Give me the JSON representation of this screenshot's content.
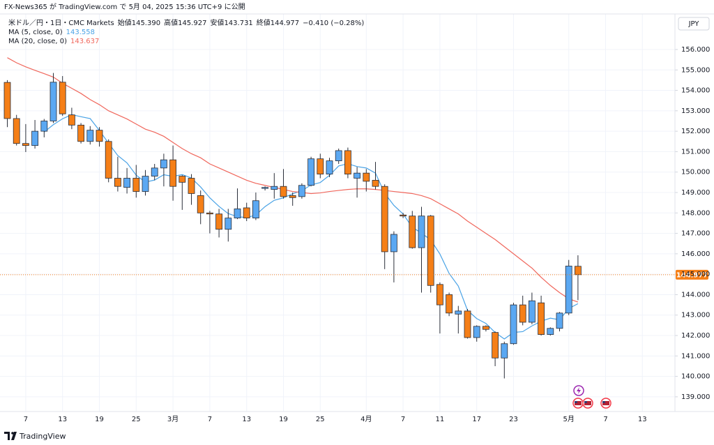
{
  "header": {
    "published": "FX-News365 が TradingView.com で 5月 04, 2025 15:36 UTC+9 に公開"
  },
  "brand": "TradingView",
  "chart_data": {
    "type": "candlestick",
    "symbol": "米ドル／円・1日・CMC Markets",
    "ohlc_legend": [
      {
        "label": "始値",
        "value": "145.390"
      },
      {
        "label": "高値",
        "value": "145.927"
      },
      {
        "label": "安値",
        "value": "143.731"
      },
      {
        "label": "終値",
        "value": "144.977"
      }
    ],
    "change": "−0.410 (−0.28%)",
    "currency": "JPY",
    "last_label": "144.977",
    "up_color": "#5ba8f2",
    "down_color": "#f57f17",
    "categories": [
      null,
      null,
      "7",
      null,
      null,
      null,
      "13",
      null,
      null,
      null,
      "19",
      null,
      null,
      null,
      "25",
      null,
      null,
      null,
      "3月",
      null,
      null,
      null,
      "7",
      null,
      null,
      null,
      "13",
      null,
      null,
      null,
      "19",
      null,
      null,
      null,
      "25",
      null,
      null,
      null,
      null,
      "4月",
      null,
      null,
      null,
      "7",
      null,
      null,
      null,
      "11",
      null,
      null,
      null,
      "17",
      null,
      null,
      null,
      "23",
      null,
      null,
      null,
      null,
      null,
      "5月",
      null,
      null,
      null,
      "7",
      null,
      null,
      null,
      "13"
    ],
    "open": [
      154.39,
      152.62,
      151.4,
      151.3,
      152.0,
      152.5,
      154.4,
      152.8,
      152.3,
      151.5,
      152.05,
      151.5,
      149.7,
      149.25,
      149.7,
      149.05,
      149.8,
      150.2,
      150.6,
      149.8,
      149.7,
      148.85,
      148.0,
      147.95,
      147.2,
      147.75,
      148.25,
      147.75,
      149.2,
      149.15,
      149.3,
      148.85,
      148.8,
      149.35,
      150.65,
      149.9,
      150.55,
      151.05,
      149.7,
      149.95,
      149.6,
      149.3,
      146.1,
      147.9,
      147.85,
      146.3,
      147.85,
      144.5,
      144.0,
      143.05,
      143.2,
      141.9,
      142.45,
      142.15,
      140.9,
      141.6,
      143.5,
      142.65,
      143.6,
      142.05,
      142.35,
      143.1,
      145.39,
      null,
      null,
      null,
      null,
      null,
      null,
      null
    ],
    "high": [
      154.5,
      152.8,
      152.35,
      152.55,
      152.6,
      154.85,
      154.7,
      153.15,
      152.4,
      152.25,
      152.2,
      151.6,
      150.75,
      150.2,
      150.35,
      150.1,
      150.4,
      150.9,
      151.3,
      149.85,
      149.9,
      149.1,
      148.1,
      148.2,
      148.2,
      149.2,
      148.5,
      149.0,
      149.3,
      149.95,
      150.15,
      149.0,
      149.45,
      150.75,
      150.9,
      150.7,
      151.15,
      151.2,
      150.25,
      150.15,
      150.5,
      149.4,
      147.1,
      148.0,
      148.1,
      148.3,
      147.9,
      144.6,
      144.1,
      143.45,
      143.3,
      142.5,
      142.5,
      142.2,
      141.7,
      143.6,
      143.95,
      144.1,
      143.95,
      142.4,
      143.15,
      145.7,
      145.927,
      null,
      null,
      null,
      null,
      null,
      null,
      null
    ],
    "low": [
      152.2,
      151.3,
      150.98,
      151.15,
      151.7,
      152.4,
      152.75,
      152.1,
      151.4,
      151.35,
      151.25,
      149.5,
      149.05,
      148.95,
      148.75,
      148.85,
      149.6,
      149.3,
      148.6,
      148.15,
      148.4,
      147.45,
      147.0,
      146.8,
      146.6,
      147.7,
      147.6,
      147.65,
      149.1,
      148.7,
      148.7,
      148.35,
      148.7,
      149.3,
      149.7,
      149.75,
      150.4,
      149.7,
      148.75,
      149.05,
      149.15,
      145.25,
      144.6,
      147.75,
      146.25,
      144.1,
      144.1,
      142.1,
      142.95,
      142.1,
      141.85,
      141.7,
      142.2,
      140.5,
      139.9,
      141.55,
      142.5,
      142.55,
      142.0,
      142.0,
      142.2,
      143.0,
      143.731,
      null,
      null,
      null,
      null,
      null,
      null,
      null
    ],
    "close": [
      152.62,
      151.4,
      151.3,
      152.0,
      152.5,
      154.4,
      152.85,
      152.3,
      151.5,
      152.05,
      151.5,
      149.7,
      149.3,
      149.7,
      149.05,
      149.8,
      150.2,
      150.6,
      149.3,
      149.5,
      148.95,
      148.0,
      147.95,
      147.2,
      147.75,
      148.2,
      147.75,
      148.6,
      149.25,
      149.3,
      148.8,
      148.75,
      149.35,
      150.65,
      149.9,
      150.55,
      151.05,
      149.9,
      149.95,
      149.55,
      149.3,
      146.1,
      146.95,
      147.85,
      146.3,
      147.85,
      144.45,
      143.5,
      143.1,
      143.2,
      141.9,
      142.45,
      142.3,
      140.9,
      141.6,
      143.5,
      142.65,
      143.7,
      142.05,
      142.35,
      143.1,
      145.4,
      144.977,
      null,
      null,
      null,
      null,
      null,
      null,
      null
    ],
    "series": [
      {
        "name": "MA (5, close, 0)",
        "color": "#4aa3e6",
        "legend_value": "143.558",
        "values": [
          null,
          null,
          null,
          null,
          151.96,
          152.32,
          152.61,
          152.81,
          152.71,
          152.62,
          152.04,
          151.41,
          150.81,
          150.45,
          149.85,
          149.51,
          149.61,
          149.87,
          149.79,
          149.88,
          149.71,
          149.27,
          148.74,
          148.32,
          147.97,
          147.82,
          147.77,
          147.9,
          148.31,
          148.62,
          148.74,
          148.94,
          149.09,
          149.37,
          149.49,
          149.84,
          150.3,
          150.41,
          150.27,
          150.2,
          149.95,
          148.96,
          148.37,
          147.95,
          147.3,
          147.01,
          146.68,
          145.99,
          145.04,
          144.42,
          143.23,
          142.83,
          142.59,
          142.15,
          141.83,
          142.15,
          142.19,
          142.47,
          142.7,
          142.85,
          142.77,
          143.32,
          143.558,
          null,
          null,
          null,
          null,
          null,
          null,
          null
        ]
      },
      {
        "name": "MA (20, close, 0)",
        "color": "#f0675c",
        "legend_value": "143.637",
        "values": [
          155.6,
          155.35,
          155.15,
          154.98,
          154.82,
          154.65,
          154.35,
          154.1,
          153.85,
          153.55,
          153.3,
          153.0,
          152.8,
          152.6,
          152.35,
          152.1,
          151.95,
          151.75,
          151.45,
          151.15,
          150.9,
          150.7,
          150.4,
          150.2,
          150.0,
          149.8,
          149.6,
          149.45,
          149.35,
          149.25,
          149.15,
          149.05,
          149.0,
          148.95,
          148.98,
          149.05,
          149.1,
          149.15,
          149.18,
          149.18,
          149.15,
          149.1,
          149.05,
          149.0,
          148.95,
          148.85,
          148.7,
          148.45,
          148.2,
          147.95,
          147.6,
          147.3,
          147.0,
          146.7,
          146.35,
          146.0,
          145.65,
          145.3,
          144.85,
          144.45,
          144.1,
          143.8,
          143.637,
          null,
          null,
          null,
          null,
          null,
          null,
          null
        ]
      }
    ],
    "ylim": [
      138.28,
      157.74
    ],
    "yticks": [
      {
        "value": 139,
        "label": "139.000"
      },
      {
        "value": 140,
        "label": "140.000"
      },
      {
        "value": 141,
        "label": "141.000"
      },
      {
        "value": 142,
        "label": "142.000"
      },
      {
        "value": 143,
        "label": "143.000"
      },
      {
        "value": 144,
        "label": "144.000"
      },
      {
        "value": 145,
        "label": "145.000"
      },
      {
        "value": 146,
        "label": "146.000"
      },
      {
        "value": 147,
        "label": "147.000"
      },
      {
        "value": 148,
        "label": "148.000"
      },
      {
        "value": 149,
        "label": "149.000"
      },
      {
        "value": 150,
        "label": "150.000"
      },
      {
        "value": 151,
        "label": "151.000"
      },
      {
        "value": 152,
        "label": "152.000"
      },
      {
        "value": 153,
        "label": "153.000"
      },
      {
        "value": 154,
        "label": "154.000"
      },
      {
        "value": 155,
        "label": "155.000"
      },
      {
        "value": 156,
        "label": "156.000"
      }
    ],
    "grid": true
  }
}
